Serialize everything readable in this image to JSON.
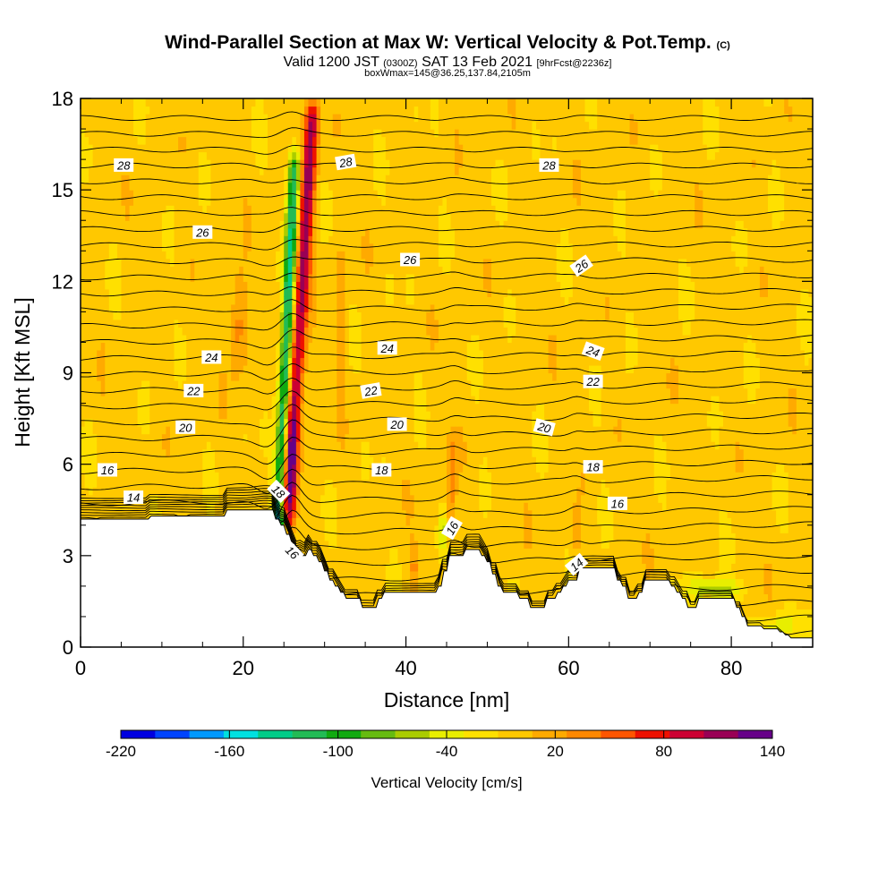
{
  "title": {
    "main": "Wind-Parallel Section at Max W: Vertical Velocity & Pot.Temp.",
    "copyright": "(C)",
    "valid_prefix": "Valid 1200 JST",
    "valid_utc": "(0300Z)",
    "valid_date": "SAT 13 Feb 2021",
    "fcst": "[9hrFcst@2236z]",
    "boxline": "boxWmax=145@36.25,137.84,2105m"
  },
  "chart_data": {
    "type": "heatmap",
    "xlabel": "Distance [nm]",
    "ylabel": "Height [Kft MSL]",
    "xlim": [
      0,
      90
    ],
    "ylim": [
      0,
      18
    ],
    "xticks": [
      0,
      20,
      40,
      60,
      80
    ],
    "yticks": [
      0,
      3,
      6,
      9,
      12,
      15,
      18
    ],
    "contour_field": "Potential Temperature",
    "contour_labels": [
      "28",
      "28",
      "28",
      "26",
      "26",
      "26",
      "24",
      "24",
      "24",
      "22",
      "22",
      "22",
      "20",
      "20",
      "20",
      "18",
      "18",
      "18",
      "16",
      "16",
      "16",
      "16",
      "14",
      "14"
    ],
    "colorbar": {
      "title": "Vertical Velocity [cm/s]",
      "tick_labels": [
        "-220",
        "-160",
        "-100",
        "-40",
        "20",
        "80",
        "140"
      ],
      "min": -220,
      "max": 140,
      "step": 20,
      "colors": [
        "#0000e0",
        "#0044ff",
        "#0099ff",
        "#00e0e0",
        "#00cc88",
        "#22bb55",
        "#11aa11",
        "#66bb11",
        "#aacc00",
        "#e8ee00",
        "#ffe000",
        "#ffc800",
        "#ffaa00",
        "#ff8800",
        "#ff5500",
        "#ee1100",
        "#cc0033",
        "#990055",
        "#660088"
      ]
    },
    "terrain_kft": [
      4.2,
      4.2,
      4.2,
      4.2,
      4.2,
      4.2,
      4.2,
      4.2,
      4.2,
      4.2,
      4.2,
      4.2,
      4.2,
      4.2,
      4.2,
      4.2,
      4.2,
      4.2,
      4.2,
      4.2,
      4.2,
      4.2,
      4.2,
      4.2,
      4.2,
      4.2,
      4.3,
      4.3,
      4.3,
      4.3,
      4.3,
      4.3,
      4.3,
      4.3,
      4.3,
      4.3,
      4.3,
      4.3,
      4.3,
      4.3,
      4.3,
      4.3,
      4.3,
      4.3,
      4.3,
      4.3,
      4.3,
      4.3,
      4.3,
      4.3,
      4.3,
      4.3,
      4.3,
      4.3,
      4.5,
      4.5,
      4.5,
      4.5,
      4.5,
      4.5,
      4.5,
      4.5,
      4.5,
      4.5,
      4.5,
      4.5,
      4.5,
      4.5,
      4.5,
      4.5,
      4.5,
      4.5,
      4.2,
      4.2,
      4.0,
      4.0,
      3.7,
      3.7,
      3.4,
      3.4,
      3.1,
      3.1,
      3.0,
      3.0,
      3.2,
      3.2,
      3.0,
      3.0,
      2.8,
      2.8,
      2.5,
      2.5,
      2.2,
      2.2,
      2.0,
      2.0,
      1.8,
      1.8,
      1.6,
      1.6,
      1.6,
      1.6,
      1.6,
      1.6,
      1.3,
      1.3,
      1.3,
      1.3,
      1.3,
      1.3,
      1.6,
      1.6,
      1.8,
      1.8,
      1.8,
      1.8,
      1.8,
      1.8,
      1.8,
      1.8,
      1.8,
      1.8,
      1.8,
      1.8,
      1.8,
      1.8,
      1.8,
      1.8,
      1.8,
      1.8,
      1.8,
      1.8,
      2.0,
      2.0,
      2.5,
      2.5,
      3.0,
      3.0,
      3.0,
      3.0,
      3.0,
      3.0,
      3.2,
      3.2,
      3.2,
      3.2,
      3.2,
      3.2,
      3.0,
      3.0,
      2.8,
      2.8,
      2.4,
      2.4,
      2.0,
      2.0,
      1.8,
      1.8,
      1.8,
      1.8,
      1.8,
      1.8,
      1.6,
      1.6,
      1.6,
      1.6,
      1.3,
      1.3,
      1.3,
      1.3,
      1.3,
      1.3,
      1.6,
      1.6,
      1.6,
      1.6,
      1.8,
      1.8,
      2.0,
      2.0,
      2.2,
      2.2,
      2.2,
      2.2,
      2.6,
      2.6,
      2.6,
      2.6,
      2.6,
      2.6,
      2.6,
      2.6,
      2.6,
      2.6,
      2.6,
      2.6,
      2.6,
      2.6,
      2.2,
      2.2,
      2.0,
      2.0,
      1.6,
      1.6,
      1.6,
      1.6,
      1.8,
      1.8,
      2.2,
      2.2,
      2.2,
      2.2,
      2.2,
      2.2,
      2.2,
      2.2,
      2.2,
      2.2,
      2.0,
      2.0,
      1.8,
      1.8,
      1.6,
      1.6,
      1.3,
      1.3,
      1.3,
      1.3,
      1.6,
      1.6,
      1.6,
      1.6,
      1.6,
      1.6,
      1.6,
      1.6,
      1.6,
      1.6,
      1.6,
      1.6,
      1.6,
      1.6,
      1.3,
      1.3,
      1.0,
      1.0,
      0.7,
      0.7,
      0.7,
      0.7,
      0.7,
      0.7,
      0.6,
      0.6,
      0.6,
      0.6,
      0.6,
      0.6,
      0.5,
      0.5,
      0.4,
      0.4,
      0.3,
      0.3,
      0.3,
      0.3,
      0.3,
      0.3,
      0.3,
      0.3,
      0.3
    ]
  }
}
